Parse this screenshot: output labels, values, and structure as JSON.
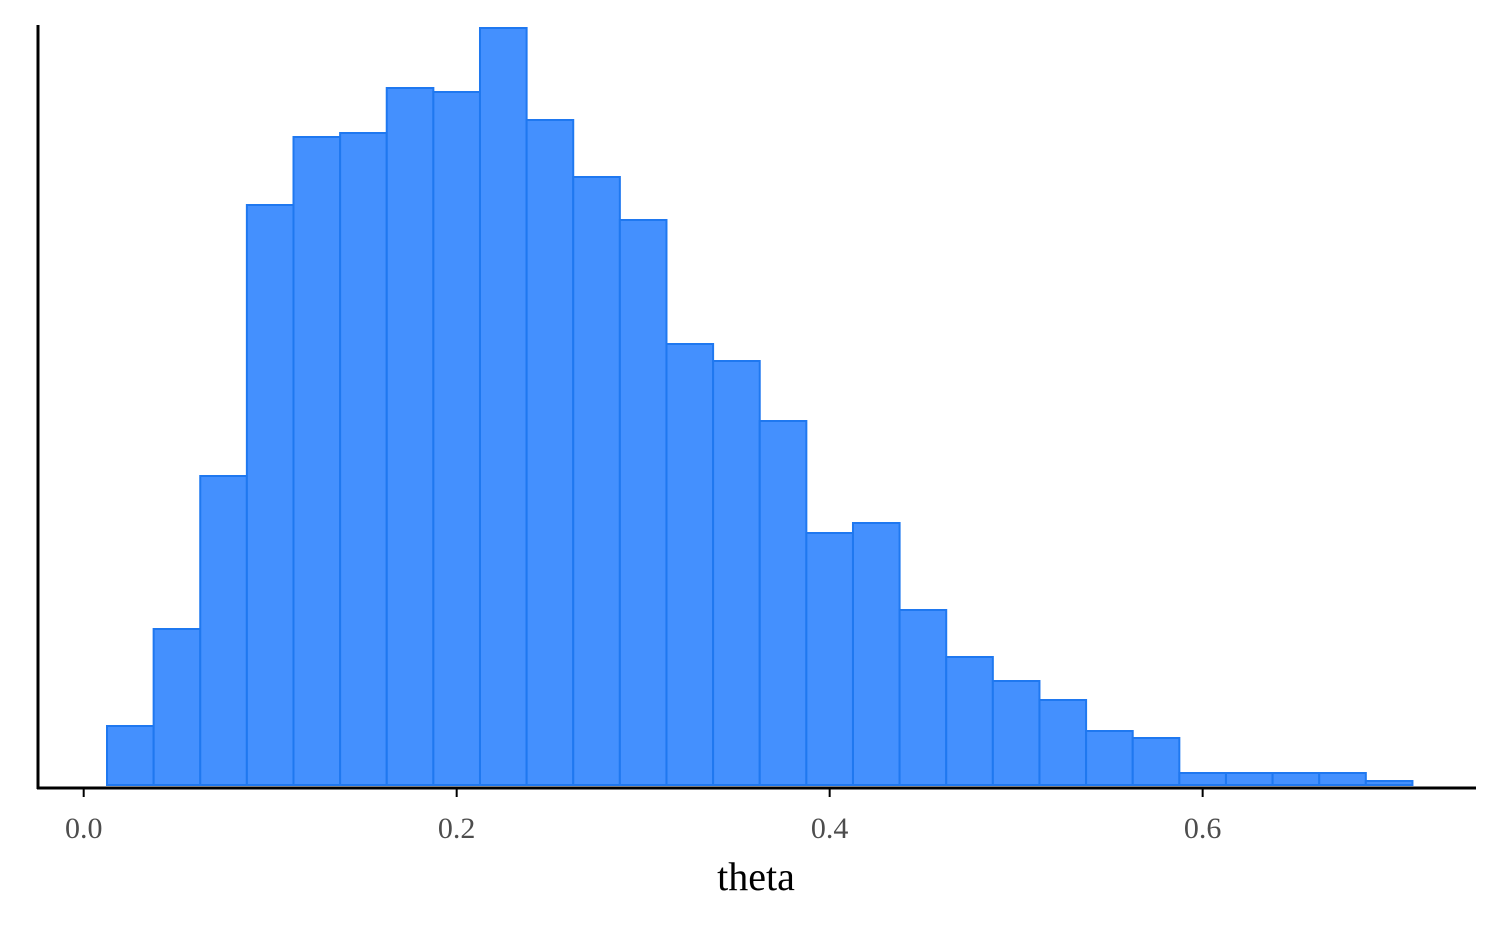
{
  "chart_data": {
    "type": "histogram",
    "xlabel": "theta",
    "ylabel": "",
    "xlim": [
      -0.0245,
      0.7455
    ],
    "x_ticks": [
      0.0,
      0.2,
      0.4,
      0.6
    ],
    "x_tick_labels": [
      "0.0",
      "0.2",
      "0.4",
      "0.6"
    ],
    "y_axis_labels_shown": false,
    "grid": false,
    "bin_start": 0.0125,
    "bin_width": 0.025,
    "bins": 28,
    "counts": [
      59,
      156,
      309,
      580,
      648,
      652,
      697,
      693,
      757,
      665,
      608,
      565,
      441,
      424,
      364,
      252,
      262,
      175,
      128,
      104,
      85,
      54,
      47,
      12,
      12,
      12,
      12,
      4
    ],
    "colors": {
      "bar_fill": "#4490fe",
      "bar_stroke": "#1f78f0",
      "axis": "#000000"
    }
  }
}
